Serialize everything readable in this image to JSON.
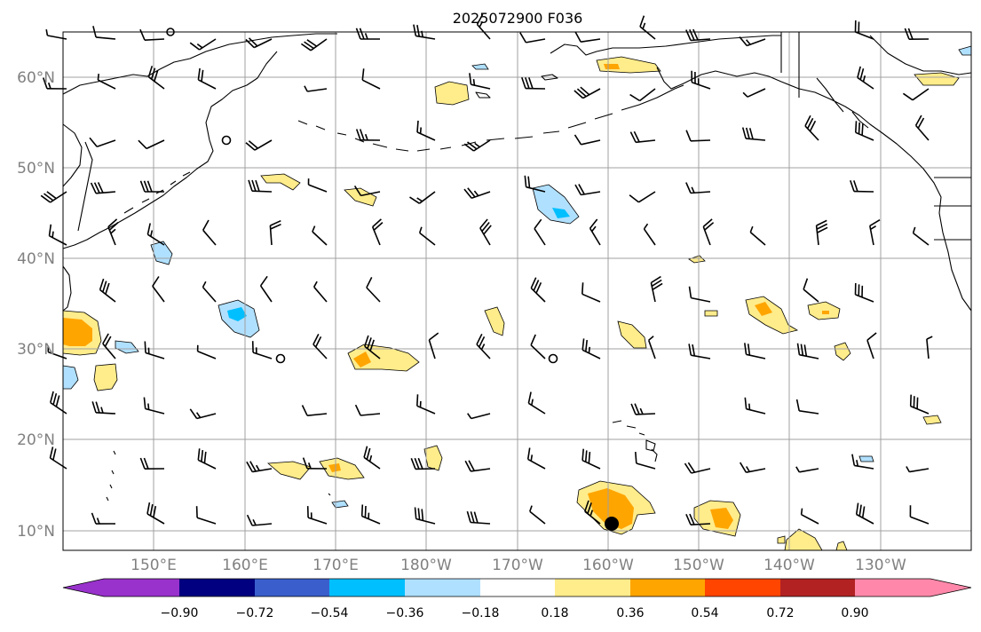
{
  "title": "2025072900 F036",
  "lat_labels": [
    "60°N",
    "50°N",
    "40°N",
    "30°N",
    "20°N",
    "10°N"
  ],
  "lon_labels": [
    "150°E",
    "160°E",
    "170°E",
    "180°W",
    "170°W",
    "160°W",
    "150°W",
    "140°W",
    "130°W"
  ],
  "colorbar": {
    "tick_labels": [
      "−0.90",
      "−0.72",
      "−0.54",
      "−0.36",
      "−0.18",
      "0.18",
      "0.36",
      "0.54",
      "0.72",
      "0.90"
    ],
    "under_color": "#9932cc",
    "over_color": "#ff88aa",
    "colors": [
      "#9932cc",
      "#000080",
      "#3a5fcd",
      "#00bfff",
      "#b0e0ff",
      "#ffffff",
      "#ffec8b",
      "#ffa500",
      "#ff4500",
      "#b22222",
      "#ff88aa"
    ]
  },
  "map_extent": {
    "lon_min": 140,
    "lon_max": 240,
    "lat_min": 8,
    "lat_max": 65
  },
  "colors": {
    "gridline": "#a0a0a0",
    "coastline": "#000000",
    "barb": "#000000"
  },
  "marker": {
    "name": "location-marker",
    "lon": 201.0,
    "lat": 10.8
  }
}
